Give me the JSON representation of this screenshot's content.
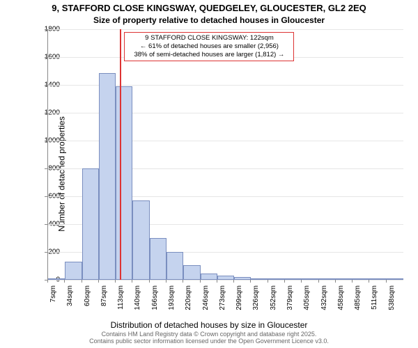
{
  "title_main": "9, STAFFORD CLOSE KINGSWAY, QUEDGELEY, GLOUCESTER, GL2 2EQ",
  "title_sub": "Size of property relative to detached houses in Gloucester",
  "y_axis_label": "Number of detached properties",
  "x_axis_label": "Distribution of detached houses by size in Gloucester",
  "footer_line1": "Contains HM Land Registry data © Crown copyright and database right 2025.",
  "footer_line2": "Contains public sector information licensed under the Open Government Licence v3.0.",
  "chart": {
    "type": "histogram",
    "ylim": [
      0,
      1800
    ],
    "ytick_step": 200,
    "bar_fill": "#c5d3ee",
    "bar_stroke": "#7a8ebf",
    "grid_color": "#e6e6e6",
    "axis_color": "#888888",
    "marker_color": "#dd3333",
    "background": "#ffffff",
    "title_fontsize": 13,
    "label_fontsize": 12,
    "tick_fontsize": 10,
    "bins": [
      {
        "label": "7sqm",
        "value": 5
      },
      {
        "label": "34sqm",
        "value": 130
      },
      {
        "label": "60sqm",
        "value": 800
      },
      {
        "label": "87sqm",
        "value": 1485
      },
      {
        "label": "113sqm",
        "value": 1390
      },
      {
        "label": "140sqm",
        "value": 570
      },
      {
        "label": "166sqm",
        "value": 300
      },
      {
        "label": "193sqm",
        "value": 200
      },
      {
        "label": "220sqm",
        "value": 105
      },
      {
        "label": "246sqm",
        "value": 45
      },
      {
        "label": "273sqm",
        "value": 30
      },
      {
        "label": "299sqm",
        "value": 20
      },
      {
        "label": "326sqm",
        "value": 10
      },
      {
        "label": "352sqm",
        "value": 5
      },
      {
        "label": "379sqm",
        "value": 3
      },
      {
        "label": "405sqm",
        "value": 2
      },
      {
        "label": "432sqm",
        "value": 2
      },
      {
        "label": "458sqm",
        "value": 1
      },
      {
        "label": "485sqm",
        "value": 1
      },
      {
        "label": "511sqm",
        "value": 1
      },
      {
        "label": "538sqm",
        "value": 1
      }
    ],
    "marker_value": 122,
    "annotation": {
      "line1": "9 STAFFORD CLOSE KINGSWAY: 122sqm",
      "line2": "← 61% of detached houses are smaller (2,956)",
      "line3": "38% of semi-detached houses are larger (1,812) →"
    }
  }
}
